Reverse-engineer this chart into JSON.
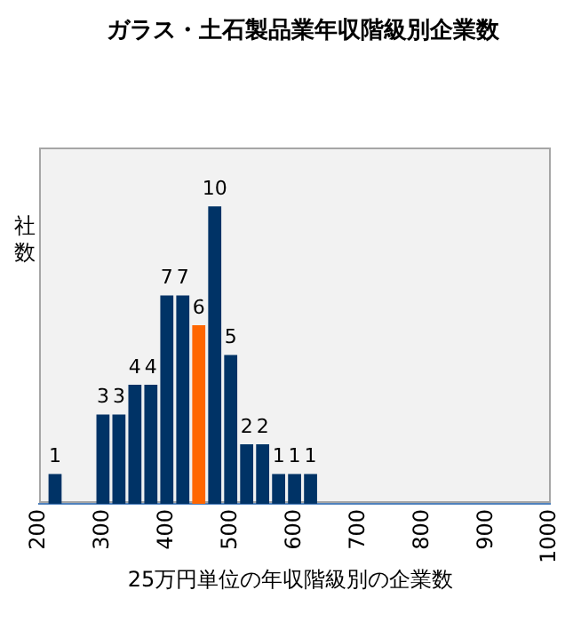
{
  "chart_data": {
    "type": "bar",
    "title": "ガラス・土石製品業年収階級別企業数",
    "xlabel": "25万円単位の年収階級別の企業数",
    "ylabel": "社数",
    "x": [
      225,
      300,
      325,
      350,
      375,
      400,
      425,
      450,
      475,
      500,
      525,
      550,
      575,
      600,
      625
    ],
    "values": [
      1,
      3,
      3,
      4,
      4,
      7,
      7,
      6,
      10,
      5,
      2,
      2,
      1,
      1,
      1
    ],
    "colors": [
      "#003366",
      "#003366",
      "#003366",
      "#003366",
      "#003366",
      "#003366",
      "#003366",
      "#ff6600",
      "#003366",
      "#003366",
      "#003366",
      "#003366",
      "#003366",
      "#003366",
      "#003366"
    ],
    "xlim": [
      200,
      1000
    ],
    "xticks": [
      200,
      300,
      400,
      500,
      600,
      700,
      800,
      900,
      1000
    ],
    "tick_labels": "x",
    "data_labels": true,
    "grid": false,
    "legend": false
  }
}
